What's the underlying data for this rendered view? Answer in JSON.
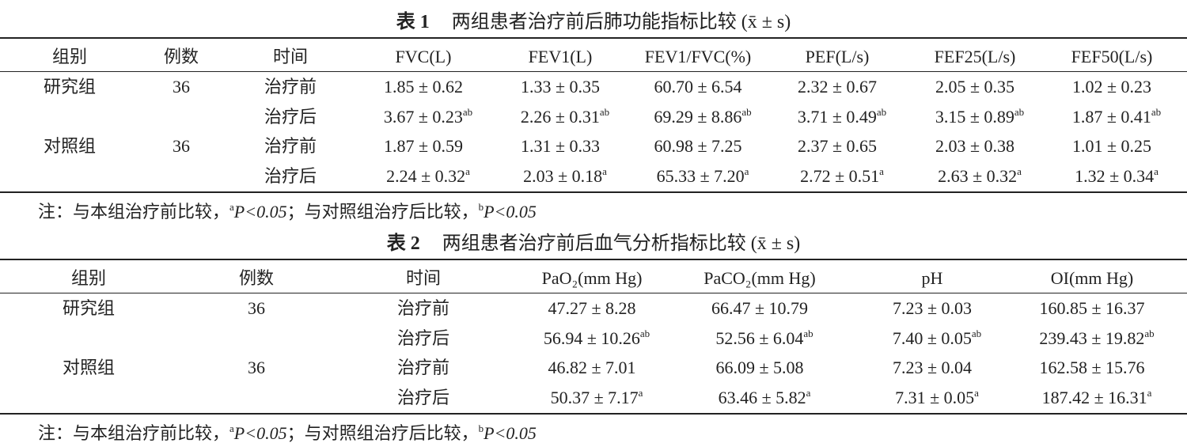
{
  "tables": [
    {
      "label": "表 1",
      "title": "两组患者治疗前后肺功能指标比较 (x̄ ± s)",
      "header": [
        "组别",
        "例数",
        "时间",
        "FVC(L)",
        "FEV1(L)",
        "FEV1/FVC(%)",
        "PEF(L/s)",
        "FEF25(L/s)",
        "FEF50(L/s)"
      ],
      "groups": [
        {
          "name": "研究组",
          "n": "36",
          "rows": [
            {
              "time": "治疗前",
              "cells": [
                {
                  "text": "1.85 ± 0.62"
                },
                {
                  "text": "1.33 ± 0.35"
                },
                {
                  "text": "60.70 ± 6.54"
                },
                {
                  "text": "2.32 ± 0.67"
                },
                {
                  "text": "2.05 ± 0.35"
                },
                {
                  "text": "1.02 ± 0.23"
                }
              ]
            },
            {
              "time": "治疗后",
              "cells": [
                {
                  "text": "3.67 ± 0.23",
                  "sup": "ab"
                },
                {
                  "text": "2.26 ± 0.31",
                  "sup": "ab"
                },
                {
                  "text": "69.29 ± 8.86",
                  "sup": "ab"
                },
                {
                  "text": "3.71 ± 0.49",
                  "sup": "ab"
                },
                {
                  "text": "3.15 ± 0.89",
                  "sup": "ab"
                },
                {
                  "text": "1.87 ± 0.41",
                  "sup": "ab"
                }
              ]
            }
          ]
        },
        {
          "name": "对照组",
          "n": "36",
          "rows": [
            {
              "time": "治疗前",
              "cells": [
                {
                  "text": "1.87 ± 0.59"
                },
                {
                  "text": "1.31 ± 0.33"
                },
                {
                  "text": "60.98 ± 7.25"
                },
                {
                  "text": "2.37 ± 0.65"
                },
                {
                  "text": "2.03 ± 0.38"
                },
                {
                  "text": "1.01 ± 0.25"
                }
              ]
            },
            {
              "time": "治疗后",
              "cells": [
                {
                  "text": "2.24 ± 0.32",
                  "sup": "a"
                },
                {
                  "text": "2.03 ± 0.18",
                  "sup": "a"
                },
                {
                  "text": "65.33 ± 7.20",
                  "sup": "a"
                },
                {
                  "text": "2.72 ± 0.51",
                  "sup": "a"
                },
                {
                  "text": "2.63 ± 0.32",
                  "sup": "a"
                },
                {
                  "text": "1.32 ± 0.34",
                  "sup": "a"
                }
              ]
            }
          ]
        }
      ],
      "note": {
        "prefix": "注：与本组治疗前比较，",
        "sup1": "a",
        "p1": "P<0.05",
        "mid": "；与对照组治疗后比较，",
        "sup2": "b",
        "p2": "P<0.05"
      }
    },
    {
      "label": "表 2",
      "title": "两组患者治疗前后血气分析指标比较 (x̄ ± s)",
      "header": [
        "组别",
        "例数",
        "时间",
        "PaO₂(mm Hg)",
        "PaCO₂(mm Hg)",
        "pH",
        "OI(mm Hg)"
      ],
      "groups": [
        {
          "name": "研究组",
          "n": "36",
          "rows": [
            {
              "time": "治疗前",
              "cells": [
                {
                  "text": "47.27 ± 8.28"
                },
                {
                  "text": "66.47 ± 10.79"
                },
                {
                  "text": "7.23 ± 0.03"
                },
                {
                  "text": "160.85 ± 16.37"
                }
              ]
            },
            {
              "time": "治疗后",
              "cells": [
                {
                  "text": "56.94 ± 10.26",
                  "sup": "ab"
                },
                {
                  "text": "52.56 ± 6.04",
                  "sup": "ab"
                },
                {
                  "text": "7.40 ± 0.05",
                  "sup": "ab"
                },
                {
                  "text": "239.43 ± 19.82",
                  "sup": "ab"
                }
              ]
            }
          ]
        },
        {
          "name": "对照组",
          "n": "36",
          "rows": [
            {
              "time": "治疗前",
              "cells": [
                {
                  "text": "46.82 ± 7.01"
                },
                {
                  "text": "66.09 ± 5.08"
                },
                {
                  "text": "7.23 ± 0.04"
                },
                {
                  "text": "162.58 ± 15.76"
                }
              ]
            },
            {
              "time": "治疗后",
              "cells": [
                {
                  "text": "50.37 ± 7.17",
                  "sup": "a"
                },
                {
                  "text": "63.46 ± 5.82",
                  "sup": "a"
                },
                {
                  "text": "7.31 ± 0.05",
                  "sup": "a"
                },
                {
                  "text": "187.42 ± 16.31",
                  "sup": "a"
                }
              ]
            }
          ]
        }
      ],
      "note": {
        "prefix": "注：与本组治疗前比较，",
        "sup1": "a",
        "p1": "P<0.05",
        "mid": "；与对照组治疗后比较，",
        "sup2": "b",
        "p2": "P<0.05"
      }
    }
  ]
}
